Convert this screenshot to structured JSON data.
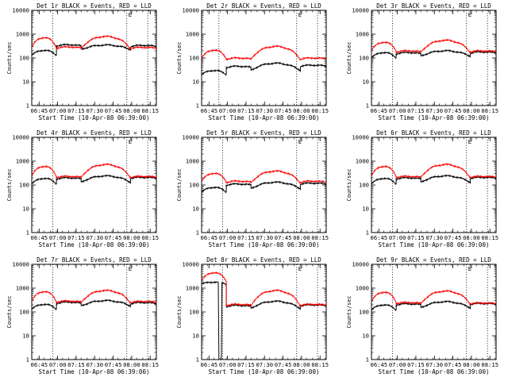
{
  "chart_data": [
    {
      "type": "line",
      "title": "Det 1r BLACK = Events, RED = LLD",
      "xlabel": "Start Time (10-Apr-08 06:39:00)",
      "ylabel": "Counts/sec",
      "yscale": "log",
      "ylim": [
        1,
        10000
      ],
      "xlim_min": [
        0,
        101
      ],
      "xticks": [
        "06:45",
        "07:00",
        "07:15",
        "07:30",
        "07:45",
        "08:00",
        "08:15"
      ],
      "xtick_min": [
        6,
        21,
        36,
        51,
        66,
        81,
        96
      ],
      "yticks": [
        "1",
        "10",
        "100",
        "1000",
        "10000"
      ],
      "marker_label": "E",
      "vlines_min": [
        17,
        77,
        94
      ],
      "series": [
        {
          "name": "Events",
          "color": "#000000",
          "base": [
            130,
            320,
            230,
            300
          ],
          "amp": [
            80,
            40,
            120,
            40
          ]
        },
        {
          "name": "LLD",
          "color": "#ff0000",
          "base": [
            270,
            260,
            240,
            250
          ],
          "amp": [
            450,
            30,
            560,
            30
          ]
        }
      ],
      "dropout": null
    },
    {
      "type": "line",
      "title": "Det 2r BLACK = Events, RED = LLD",
      "xlabel": "Start Time (10-Apr-08 06:39:00)",
      "ylabel": "Counts/sec",
      "yscale": "log",
      "ylim": [
        1,
        10000
      ],
      "xlim_min": [
        0,
        101
      ],
      "xticks": [
        "06:45",
        "07:00",
        "07:15",
        "07:30",
        "07:45",
        "08:00",
        "08:15"
      ],
      "xtick_min": [
        6,
        21,
        36,
        51,
        66,
        81,
        96
      ],
      "yticks": [
        "1",
        "10",
        "100",
        "1000",
        "10000"
      ],
      "marker_label": "E",
      "vlines_min": [
        14,
        77,
        94
      ],
      "series": [
        {
          "name": "Events",
          "color": "#000000",
          "base": [
            20,
            40,
            30,
            45
          ],
          "amp": [
            10,
            5,
            30,
            5
          ]
        },
        {
          "name": "LLD",
          "color": "#ff0000",
          "base": [
            95,
            90,
            85,
            90
          ],
          "amp": [
            120,
            10,
            220,
            10
          ]
        }
      ],
      "dropout": null
    },
    {
      "type": "line",
      "title": "Det 3r BLACK = Events, RED = LLD",
      "xlabel": "Start Time (10-Apr-08 06:39:00)",
      "ylabel": "Counts/sec",
      "yscale": "log",
      "ylim": [
        1,
        10000
      ],
      "xlim_min": [
        0,
        101
      ],
      "xticks": [
        "06:45",
        "07:00",
        "07:15",
        "07:30",
        "07:45",
        "08:00",
        "08:15"
      ],
      "xtick_min": [
        6,
        21,
        36,
        51,
        66,
        81,
        96
      ],
      "yticks": [
        "1",
        "10",
        "100",
        "1000",
        "10000"
      ],
      "marker_label": "E",
      "vlines_min": [
        17,
        77,
        94
      ],
      "series": [
        {
          "name": "Events",
          "color": "#000000",
          "base": [
            100,
            150,
            120,
            160
          ],
          "amp": [
            70,
            20,
            80,
            20
          ]
        },
        {
          "name": "LLD",
          "color": "#ff0000",
          "base": [
            200,
            180,
            170,
            180
          ],
          "amp": [
            260,
            20,
            380,
            20
          ]
        }
      ],
      "dropout": null
    },
    {
      "type": "line",
      "title": "Det 4r BLACK = Events, RED = LLD",
      "xlabel": "Start Time (10-Apr-08 06:39:00)",
      "ylabel": "Counts/sec",
      "yscale": "log",
      "ylim": [
        1,
        10000
      ],
      "xlim_min": [
        0,
        101
      ],
      "xticks": [
        "06:45",
        "07:00",
        "07:15",
        "07:30",
        "07:45",
        "08:00",
        "08:15"
      ],
      "xtick_min": [
        6,
        21,
        36,
        51,
        66,
        81,
        96
      ],
      "yticks": [
        "1",
        "10",
        "100",
        "1000",
        "10000"
      ],
      "marker_label": "E",
      "vlines_min": [
        17,
        77,
        94
      ],
      "series": [
        {
          "name": "Events",
          "color": "#000000",
          "base": [
            110,
            180,
            130,
            190
          ],
          "amp": [
            80,
            20,
            110,
            20
          ]
        },
        {
          "name": "LLD",
          "color": "#ff0000",
          "base": [
            230,
            210,
            200,
            210
          ],
          "amp": [
            380,
            20,
            520,
            20
          ]
        }
      ],
      "dropout": null
    },
    {
      "type": "line",
      "title": "Det 5r BLACK = Events, RED = LLD",
      "xlabel": "Start Time (10-Apr-08 06:39:00)",
      "ylabel": "Counts/sec",
      "yscale": "log",
      "ylim": [
        1,
        10000
      ],
      "xlim_min": [
        0,
        101
      ],
      "xticks": [
        "06:45",
        "07:00",
        "07:15",
        "07:30",
        "07:45",
        "08:00",
        "08:15"
      ],
      "xtick_min": [
        6,
        21,
        36,
        51,
        66,
        81,
        96
      ],
      "yticks": [
        "1",
        "10",
        "100",
        "1000",
        "10000"
      ],
      "marker_label": "E",
      "vlines_min": [
        17,
        77,
        94
      ],
      "series": [
        {
          "name": "Events",
          "color": "#000000",
          "base": [
            50,
            100,
            70,
            110
          ],
          "amp": [
            30,
            10,
            60,
            10
          ]
        },
        {
          "name": "LLD",
          "color": "#ff0000",
          "base": [
            140,
            130,
            120,
            130
          ],
          "amp": [
            170,
            15,
            260,
            15
          ]
        }
      ],
      "dropout": null
    },
    {
      "type": "line",
      "title": "Det 6r BLACK = Events, RED = LLD",
      "xlabel": "Start Time (10-Apr-08 06:39:00)",
      "ylabel": "Counts/sec",
      "yscale": "log",
      "ylim": [
        1,
        10000
      ],
      "xlim_min": [
        0,
        101
      ],
      "xticks": [
        "06:45",
        "07:00",
        "07:15",
        "07:30",
        "07:45",
        "08:00",
        "08:15"
      ],
      "xtick_min": [
        6,
        21,
        36,
        51,
        66,
        81,
        96
      ],
      "yticks": [
        "1",
        "10",
        "100",
        "1000",
        "10000"
      ],
      "marker_label": "E",
      "vlines_min": [
        17,
        77,
        94
      ],
      "series": [
        {
          "name": "Events",
          "color": "#000000",
          "base": [
            110,
            180,
            130,
            190
          ],
          "amp": [
            80,
            20,
            110,
            20
          ]
        },
        {
          "name": "LLD",
          "color": "#ff0000",
          "base": [
            230,
            210,
            200,
            210
          ],
          "amp": [
            380,
            20,
            520,
            20
          ]
        }
      ],
      "dropout": null
    },
    {
      "type": "line",
      "title": "Det 7r BLACK = Events, RED = LLD",
      "xlabel": "Start Time (10-Apr-08 06:39:00)",
      "ylabel": "Counts/sec",
      "yscale": "log",
      "ylim": [
        1,
        10000
      ],
      "xlim_min": [
        0,
        101
      ],
      "xticks": [
        "06:45",
        "07:00",
        "07:15",
        "07:30",
        "07:45",
        "08:00",
        "08:15"
      ],
      "xtick_min": [
        6,
        21,
        36,
        51,
        66,
        81,
        96
      ],
      "yticks": [
        "1",
        "10",
        "100",
        "1000",
        "10000"
      ],
      "marker_label": "E",
      "vlines_min": [
        17,
        77,
        94
      ],
      "series": [
        {
          "name": "Events",
          "color": "#000000",
          "base": [
            130,
            230,
            180,
            220
          ],
          "amp": [
            80,
            30,
            120,
            30
          ]
        },
        {
          "name": "LLD",
          "color": "#ff0000",
          "base": [
            270,
            260,
            240,
            250
          ],
          "amp": [
            450,
            30,
            560,
            30
          ]
        }
      ],
      "dropout": null
    },
    {
      "type": "line",
      "title": "Det 8r BLACK = Events, RED = LLD",
      "xlabel": "Start Time (10-Apr-08 06:39:00)",
      "ylabel": "Counts/sec",
      "yscale": "log",
      "ylim": [
        1,
        10000
      ],
      "xlim_min": [
        0,
        101
      ],
      "xticks": [
        "06:45",
        "07:00",
        "07:15",
        "07:30",
        "07:45",
        "08:00",
        "08:15"
      ],
      "xtick_min": [
        6,
        21,
        36,
        51,
        66,
        81,
        96
      ],
      "yticks": [
        "1",
        "10",
        "100",
        "1000",
        "10000"
      ],
      "marker_label": "E",
      "vlines_min": [
        17,
        77,
        94
      ],
      "series": [
        {
          "name": "Events",
          "color": "#000000",
          "base": [
            1500,
            170,
            140,
            180
          ],
          "amp": [
            300,
            20,
            140,
            20
          ]
        },
        {
          "name": "LLD",
          "color": "#ff0000",
          "base": [
            2000,
            190,
            170,
            190
          ],
          "amp": [
            2500,
            20,
            620,
            20
          ]
        }
      ],
      "dropout": {
        "start_min": 14,
        "end_min": 16,
        "value": 1
      }
    },
    {
      "type": "line",
      "title": "Det 9r BLACK = Events, RED = LLD",
      "xlabel": "Start Time (10-Apr-08 06:39:00)",
      "ylabel": "Counts/sec",
      "yscale": "log",
      "ylim": [
        1,
        10000
      ],
      "xlim_min": [
        0,
        101
      ],
      "xticks": [
        "06:45",
        "07:00",
        "07:15",
        "07:30",
        "07:45",
        "08:00",
        "08:15"
      ],
      "xtick_min": [
        6,
        21,
        36,
        51,
        66,
        81,
        96
      ],
      "yticks": [
        "1",
        "10",
        "100",
        "1000",
        "10000"
      ],
      "marker_label": "E",
      "vlines_min": [
        17,
        77,
        94
      ],
      "series": [
        {
          "name": "Events",
          "color": "#000000",
          "base": [
            120,
            200,
            150,
            210
          ],
          "amp": [
            80,
            20,
            120,
            20
          ]
        },
        {
          "name": "LLD",
          "color": "#ff0000",
          "base": [
            260,
            230,
            210,
            220
          ],
          "amp": [
            420,
            20,
            540,
            20
          ]
        }
      ],
      "dropout": null
    }
  ]
}
